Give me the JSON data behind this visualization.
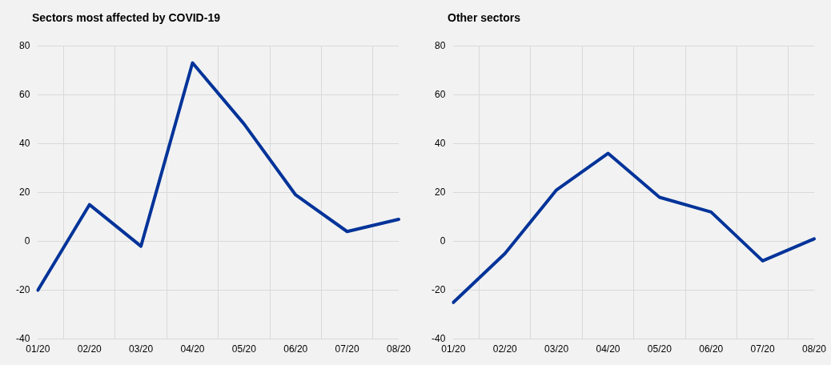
{
  "chart_data": [
    {
      "type": "line",
      "title": "Sectors most affected by COVID-19",
      "categories": [
        "01/20",
        "02/20",
        "03/20",
        "04/20",
        "05/20",
        "06/20",
        "07/20",
        "08/20"
      ],
      "series": [
        {
          "color": "#003399",
          "values": [
            -20,
            15,
            -2,
            73,
            48,
            19,
            4,
            9
          ]
        }
      ],
      "ylim": [
        -40,
        80
      ],
      "yticks": [
        -40,
        -20,
        0,
        20,
        40,
        60,
        80
      ],
      "grid": true,
      "legend": false,
      "marker": "none"
    },
    {
      "type": "line",
      "title": "Other sectors",
      "categories": [
        "01/20",
        "02/20",
        "03/20",
        "04/20",
        "05/20",
        "06/20",
        "07/20",
        "08/20"
      ],
      "series": [
        {
          "color": "#003399",
          "values": [
            -25,
            -5,
            21,
            36,
            18,
            12,
            -8,
            1
          ]
        }
      ],
      "ylim": [
        -40,
        80
      ],
      "yticks": [
        -40,
        -20,
        0,
        20,
        40,
        60,
        80
      ],
      "grid": true,
      "legend": false,
      "marker": "none"
    }
  ]
}
